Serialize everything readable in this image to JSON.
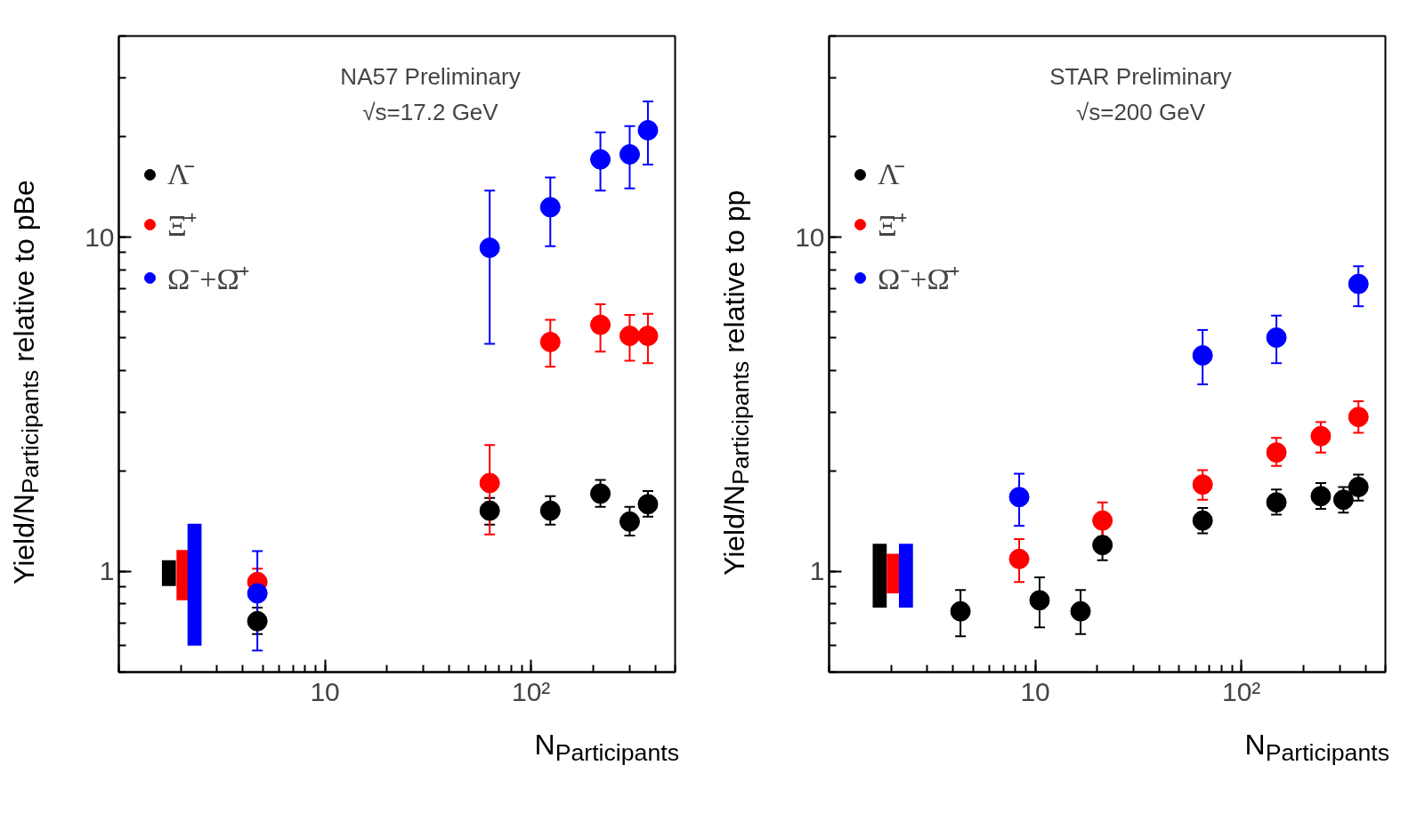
{
  "chart_data": [
    {
      "type": "scatter",
      "title": "NA57 Preliminary",
      "subtitle": "√s=17.2 GeV",
      "xlabel": "N$_{Participants}$",
      "ylabel": "Yield/N$_{Participants}$ relative to pBe",
      "log": "xy",
      "xlim": [
        1,
        500
      ],
      "ylim": [
        0.5,
        40
      ],
      "xticks": [
        10,
        {
          "value": 100,
          "label": "10²"
        }
      ],
      "yticks": [
        1,
        10
      ],
      "legend": "top left",
      "marker": "circle",
      "grid": false,
      "series": [
        {
          "type": "bar",
          "color": "#000000",
          "x": [
            1.75
          ],
          "base": [
            0.905
          ],
          "values": [
            0.175
          ]
        },
        {
          "type": "bar",
          "color": "#ff0000",
          "x": [
            2.06
          ],
          "base": [
            0.82
          ],
          "values": [
            0.34
          ]
        },
        {
          "type": "bar",
          "color": "#0000ff",
          "x": [
            2.33
          ],
          "base": [
            0.6
          ],
          "values": [
            0.79
          ]
        },
        {
          "name": "Λ̄",
          "color": "#000000",
          "x": [
            4.7,
            63,
            124,
            217,
            301,
            369
          ],
          "values": [
            0.71,
            1.52,
            1.52,
            1.71,
            1.41,
            1.59
          ],
          "errors": [
            [
              0.65,
              0.78
            ],
            [
              1.38,
              1.66
            ],
            [
              1.38,
              1.68
            ],
            [
              1.56,
              1.88
            ],
            [
              1.28,
              1.56
            ],
            [
              1.46,
              1.74
            ]
          ]
        },
        {
          "name": "Ξ̄⁺",
          "color": "#ff0000",
          "x": [
            4.7,
            63,
            124,
            217,
            301,
            369
          ],
          "values": [
            0.93,
            1.84,
            4.86,
            5.47,
            5.07,
            5.07
          ],
          "errors": [
            [
              0.93,
              1.02
            ],
            [
              1.29,
              2.39
            ],
            [
              4.1,
              5.66
            ],
            [
              4.55,
              6.3
            ],
            [
              4.27,
              5.86
            ],
            [
              4.2,
              5.9
            ]
          ]
        },
        {
          "name": "Ω⁻+Ω̄⁺",
          "color": "#0000ff",
          "x": [
            4.7,
            63,
            124,
            217,
            301,
            369
          ],
          "values": [
            0.86,
            9.3,
            12.3,
            17.1,
            17.7,
            20.9
          ],
          "errors": [
            [
              0.58,
              1.15
            ],
            [
              4.8,
              13.8
            ],
            [
              9.4,
              15.1
            ],
            [
              13.8,
              20.6
            ],
            [
              14.0,
              21.5
            ],
            [
              16.5,
              25.5
            ]
          ]
        }
      ]
    },
    {
      "type": "scatter",
      "title": "STAR Preliminary",
      "subtitle": "√s=200 GeV",
      "xlabel": "N$_{Participants}$",
      "ylabel": "Yield/N$_{Participants}$ relative to pp",
      "log": "xy",
      "xlim": [
        1,
        500
      ],
      "ylim": [
        0.5,
        40
      ],
      "xticks": [
        10,
        {
          "value": 100,
          "label": "10²"
        }
      ],
      "yticks": [
        1,
        10
      ],
      "legend": "top left",
      "marker": "circle",
      "grid": false,
      "series": [
        {
          "type": "bar",
          "color": "#000000",
          "x": [
            1.76
          ],
          "base": [
            0.78
          ],
          "values": [
            0.43
          ]
        },
        {
          "type": "bar",
          "color": "#ff0000",
          "x": [
            2.06
          ],
          "base": [
            0.86
          ],
          "values": [
            0.27
          ]
        },
        {
          "type": "bar",
          "color": "#0000ff",
          "x": [
            2.36
          ],
          "base": [
            0.78
          ],
          "values": [
            0.43
          ]
        },
        {
          "name": "Λ̄",
          "color": "#000000",
          "x": [
            4.34,
            10.5,
            16.6,
            21.2,
            64.9,
            148,
            243,
            313,
            370
          ],
          "values": [
            0.76,
            0.82,
            0.76,
            1.2,
            1.42,
            1.61,
            1.68,
            1.64,
            1.79
          ],
          "errors": [
            [
              0.64,
              0.88
            ],
            [
              0.68,
              0.96
            ],
            [
              0.65,
              0.88
            ],
            [
              1.08,
              1.35
            ],
            [
              1.3,
              1.55
            ],
            [
              1.48,
              1.76
            ],
            [
              1.54,
              1.84
            ],
            [
              1.5,
              1.79
            ],
            [
              1.63,
              1.95
            ]
          ]
        },
        {
          "name": "Ξ̄⁺",
          "color": "#ff0000",
          "x": [
            8.36,
            21.2,
            64.9,
            148,
            243,
            370
          ],
          "values": [
            1.09,
            1.42,
            1.82,
            2.27,
            2.54,
            2.9
          ],
          "errors": [
            [
              0.93,
              1.25
            ],
            [
              1.27,
              1.61
            ],
            [
              1.64,
              2.01
            ],
            [
              2.07,
              2.51
            ],
            [
              2.27,
              2.8
            ],
            [
              2.6,
              3.23
            ]
          ]
        },
        {
          "name": "Ω⁻+Ω̄⁺",
          "color": "#0000ff",
          "x": [
            8.36,
            64.9,
            148,
            370
          ],
          "values": [
            1.67,
            4.43,
            5.01,
            7.25
          ],
          "errors": [
            [
              1.37,
              1.96
            ],
            [
              3.63,
              5.28
            ],
            [
              4.2,
              5.83
            ],
            [
              6.22,
              8.19
            ]
          ]
        }
      ]
    }
  ]
}
